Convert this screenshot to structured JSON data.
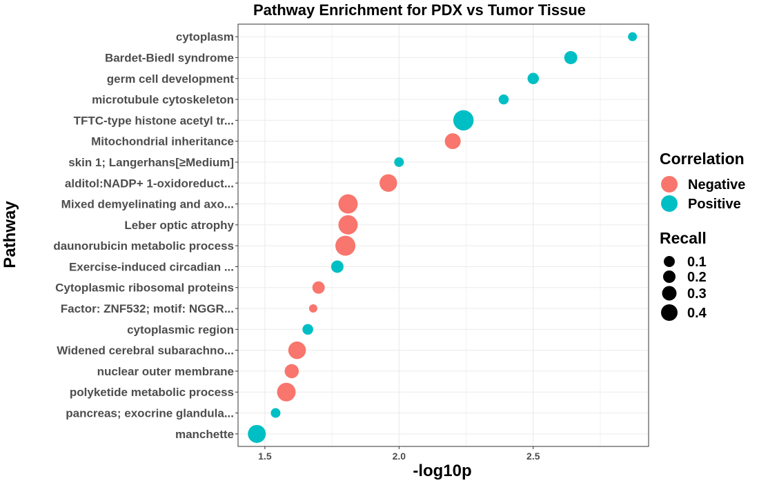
{
  "chart_data": {
    "type": "scatter",
    "title": "Pathway Enrichment for PDX vs Tumor Tissue",
    "xlabel": "-log10p",
    "ylabel": "Pathway",
    "xlim": [
      1.4,
      2.93
    ],
    "xticks": [
      "1.5",
      "2.0",
      "2.5"
    ],
    "grid": true,
    "legend_position": "right",
    "colors": {
      "Negative": "#F8766D",
      "Positive": "#00BFC4"
    },
    "points": [
      {
        "pathway": "cytoplasm",
        "x": 2.87,
        "correlation": "Positive",
        "recall": 0.1
      },
      {
        "pathway": "Bardet-Biedl syndrome",
        "x": 2.64,
        "correlation": "Positive",
        "recall": 0.22
      },
      {
        "pathway": "germ cell development",
        "x": 2.5,
        "correlation": "Positive",
        "recall": 0.17
      },
      {
        "pathway": "microtubule cytoskeleton",
        "x": 2.39,
        "correlation": "Positive",
        "recall": 0.13
      },
      {
        "pathway": "TFTC-type histone acetyl tr...",
        "x": 2.24,
        "correlation": "Positive",
        "recall": 0.43
      },
      {
        "pathway": "Mitochondrial inheritance",
        "x": 2.2,
        "correlation": "Negative",
        "recall": 0.3
      },
      {
        "pathway": "skin 1; Langerhans[≥Medium]",
        "x": 2.0,
        "correlation": "Positive",
        "recall": 0.12
      },
      {
        "pathway": "alditol:NADP+ 1-oxidoreduct...",
        "x": 1.96,
        "correlation": "Negative",
        "recall": 0.35
      },
      {
        "pathway": "Mixed demyelinating and axo...",
        "x": 1.81,
        "correlation": "Negative",
        "recall": 0.4
      },
      {
        "pathway": "Leber optic atrophy",
        "x": 1.81,
        "correlation": "Negative",
        "recall": 0.4
      },
      {
        "pathway": "daunorubicin metabolic process",
        "x": 1.8,
        "correlation": "Negative",
        "recall": 0.42
      },
      {
        "pathway": "Exercise-induced circadian ...",
        "x": 1.77,
        "correlation": "Positive",
        "recall": 0.2
      },
      {
        "pathway": "Cytoplasmic ribosomal proteins",
        "x": 1.7,
        "correlation": "Negative",
        "recall": 0.2
      },
      {
        "pathway": "Factor: ZNF532; motif: NGGR...",
        "x": 1.68,
        "correlation": "Negative",
        "recall": 0.08
      },
      {
        "pathway": "cytoplasmic region",
        "x": 1.66,
        "correlation": "Positive",
        "recall": 0.15
      },
      {
        "pathway": "Widened cerebral subarachno...",
        "x": 1.62,
        "correlation": "Negative",
        "recall": 0.35
      },
      {
        "pathway": "nuclear outer membrane",
        "x": 1.6,
        "correlation": "Negative",
        "recall": 0.25
      },
      {
        "pathway": "polyketide metabolic process",
        "x": 1.58,
        "correlation": "Negative",
        "recall": 0.38
      },
      {
        "pathway": "pancreas; exocrine glandula...",
        "x": 1.54,
        "correlation": "Positive",
        "recall": 0.12
      },
      {
        "pathway": "manchette",
        "x": 1.47,
        "correlation": "Positive",
        "recall": 0.36
      }
    ],
    "legend": {
      "color_title": "Correlation",
      "color_items": [
        "Negative",
        "Positive"
      ],
      "size_title": "Recall",
      "size_items": [
        "0.1",
        "0.2",
        "0.3",
        "0.4"
      ]
    }
  }
}
